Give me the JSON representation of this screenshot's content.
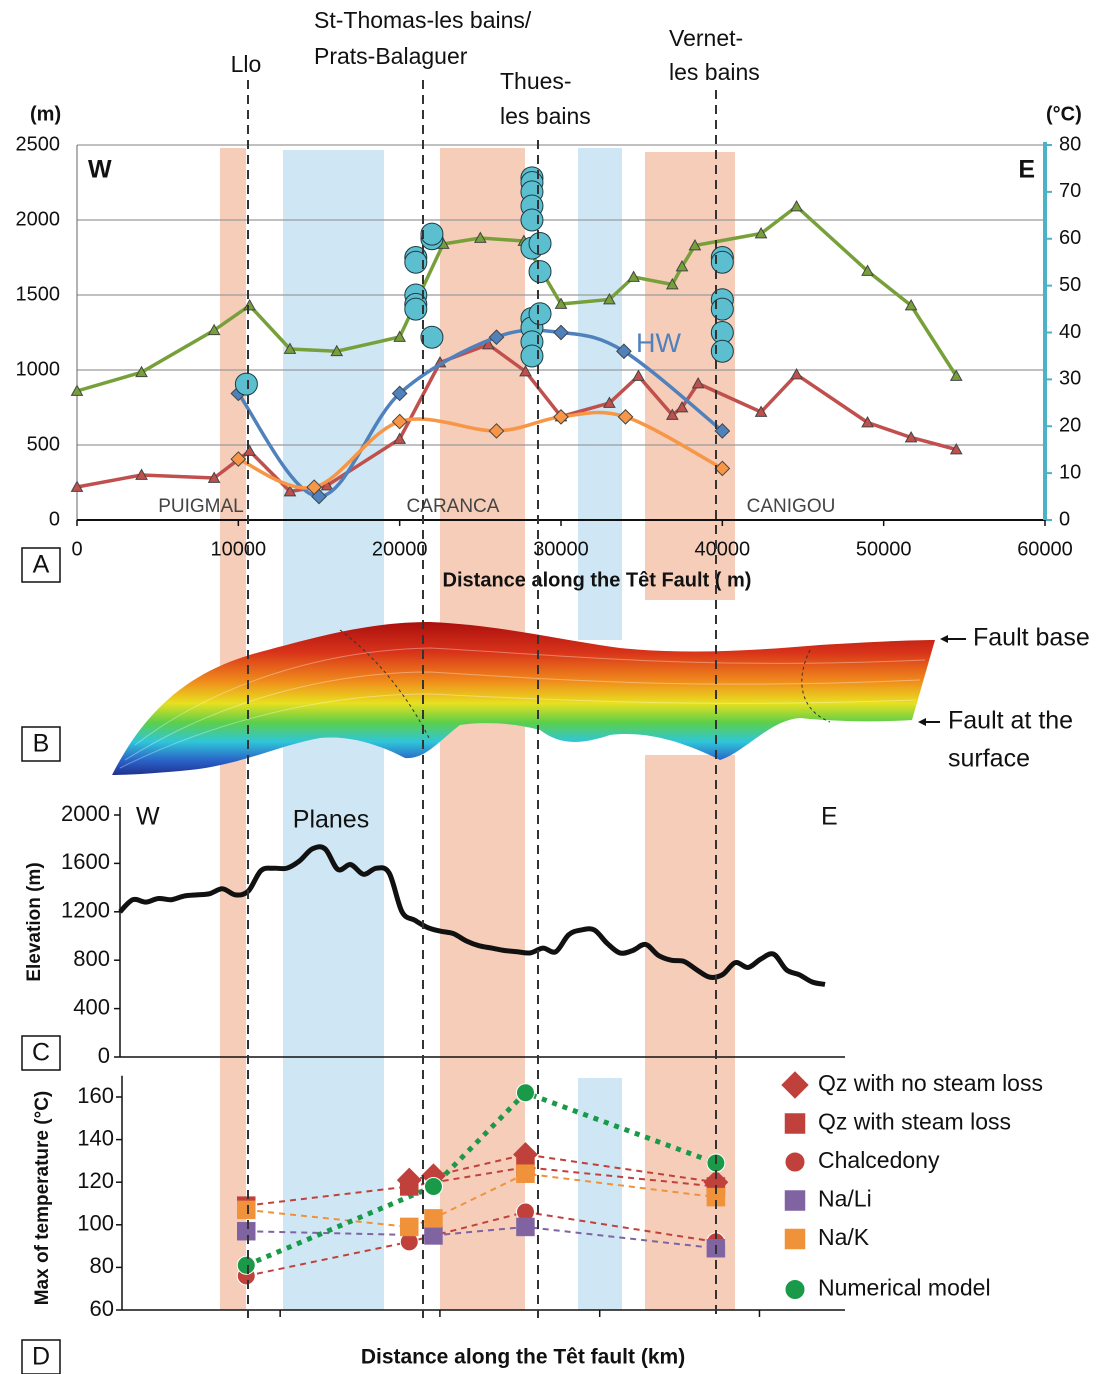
{
  "figure": {
    "locations": [
      [
        "Llo"
      ],
      [
        "St-Thomas-les bains/",
        "Prats-Balaguer"
      ],
      [
        "Thues-",
        "les bains"
      ],
      [
        "Vernet-",
        "les bains"
      ]
    ],
    "panel_b": {
      "label": "B",
      "annotations": [
        [
          "Fault base"
        ],
        [
          "Fault at the",
          "surface"
        ]
      ]
    }
  },
  "chart_data": [
    {
      "type": "line",
      "panel": "A",
      "y_unit": "(m)",
      "y2_unit": "(°C)",
      "xlabel": "Distance along the Têt Fault (  m)",
      "annotations": {
        "west": "W",
        "east": "E",
        "regions": [
          "PUIGMAL",
          "CARANCA",
          "CANIGOU"
        ]
      },
      "xlim": [
        0,
        60000
      ],
      "xticks": [
        0,
        10000,
        20000,
        30000,
        40000,
        50000,
        60000
      ],
      "ylim": [
        0,
        2500
      ],
      "yticks": [
        0,
        500,
        1000,
        1500,
        2000,
        2500
      ],
      "y2lim": [
        0,
        80
      ],
      "y2ticks": [
        0,
        10,
        20,
        30,
        40,
        50,
        60,
        70,
        80
      ],
      "grid": true,
      "series": [
        {
          "color": "#77a03a",
          "marker": "triangle",
          "line": true,
          "smooth": false,
          "x": [
            0,
            4000,
            8500,
            10700,
            13200,
            16100,
            20000,
            22700,
            25000,
            27700,
            30000,
            33000,
            34500,
            36900,
            37500,
            38300,
            42400,
            44600,
            49000,
            51700,
            54500
          ],
          "values": [
            860,
            985,
            1265,
            1430,
            1140,
            1125,
            1220,
            1840,
            1880,
            1860,
            1440,
            1470,
            1620,
            1570,
            1690,
            1830,
            1910,
            2090,
            1660,
            1430,
            960
          ]
        },
        {
          "color": "#c0504d",
          "marker": "triangle",
          "line": true,
          "smooth": false,
          "x": [
            0,
            4000,
            8500,
            10700,
            13200,
            15500,
            20000,
            22500,
            25500,
            27800,
            30000,
            33000,
            34800,
            36900,
            37500,
            38500,
            42400,
            44600,
            49000,
            51700,
            54500
          ],
          "values": [
            220,
            300,
            280,
            460,
            190,
            230,
            540,
            1050,
            1170,
            990,
            690,
            780,
            960,
            700,
            750,
            910,
            720,
            970,
            650,
            550,
            470
          ]
        },
        {
          "name": "HW",
          "axis": "y2",
          "color": "#4f81bd",
          "marker": "diamond",
          "line": true,
          "smooth": true,
          "x": [
            10000,
            15000,
            20000,
            26000,
            30000,
            33900,
            40000
          ],
          "values": [
            27,
            5,
            27,
            39,
            40,
            36,
            19
          ]
        },
        {
          "axis": "y2",
          "color": "#f79646",
          "marker": "diamond",
          "line": true,
          "smooth": true,
          "x": [
            10000,
            14700,
            20000,
            26000,
            30000,
            34000,
            40000
          ],
          "values": [
            13,
            7,
            21,
            19,
            22,
            22,
            11
          ]
        },
        {
          "axis": "y2",
          "color": "#4bb3c8",
          "marker": "circle",
          "line": false,
          "smooth": false,
          "x": [
            10500,
            21000,
            21000,
            21000,
            21000,
            21000,
            22000,
            22000,
            22000,
            28200,
            28200,
            28200,
            28200,
            28200,
            28200,
            28200,
            28200,
            28200,
            28200,
            28700,
            28700,
            28700,
            40000,
            40000,
            40000,
            40000,
            40000,
            40000
          ],
          "values": [
            29,
            56,
            55,
            48,
            46,
            45,
            60,
            61,
            39,
            73,
            72,
            70,
            67,
            64,
            58,
            43,
            41,
            38,
            35,
            59,
            53,
            44,
            56,
            55,
            47,
            45,
            40,
            36
          ]
        }
      ]
    },
    {
      "type": "line",
      "panel": "C",
      "ylabel": "Elevation (m)",
      "annotations": {
        "west": "W",
        "east": "E",
        "planes": "Planes"
      },
      "ylim": [
        0,
        2000
      ],
      "yticks": [
        0,
        400,
        800,
        1200,
        1600,
        2000
      ],
      "series": [
        {
          "color": "#111111",
          "values": [
            1200,
            1300,
            1280,
            1310,
            1300,
            1330,
            1340,
            1350,
            1390,
            1340,
            1370,
            1540,
            1560,
            1560,
            1620,
            1720,
            1720,
            1550,
            1590,
            1510,
            1560,
            1520,
            1200,
            1130,
            1070,
            1040,
            1020,
            960,
            920,
            900,
            880,
            870,
            860,
            900,
            870,
            1010,
            1050,
            1050,
            940,
            860,
            880,
            930,
            840,
            800,
            790,
            720,
            660,
            680,
            780,
            740,
            810,
            850,
            720,
            680,
            620,
            600
          ]
        }
      ]
    },
    {
      "type": "scatter",
      "panel": "D",
      "xlabel": "Distance along the Têt fault (km)",
      "ylabel": "Max of temperature (°C)",
      "xlim": [
        2.8,
        47.6
      ],
      "xticks": [
        12.6,
        22.5,
        32.4,
        42.3
      ],
      "ylim": [
        60,
        170
      ],
      "yticks": [
        60,
        80,
        100,
        120,
        140,
        160
      ],
      "legend": "right",
      "series": [
        {
          "name": "Qz with no steam loss",
          "color": "#c0413b",
          "marker": "diamond",
          "line": "dashed",
          "x": [
            20.6,
            22.1,
            27.8,
            39.6
          ],
          "values": [
            121,
            123,
            133,
            120
          ]
        },
        {
          "name": "Qz with steam loss",
          "color": "#c0413b",
          "marker": "square",
          "line": "dashed",
          "x": [
            10.5,
            20.6,
            27.8,
            39.6
          ],
          "values": [
            109,
            118,
            127,
            118
          ]
        },
        {
          "name": "Chalcedony",
          "color": "#c0413b",
          "marker": "circle",
          "line": "dashed",
          "x": [
            10.5,
            20.6,
            27.8,
            39.6
          ],
          "values": [
            76,
            92,
            106,
            92
          ]
        },
        {
          "name": "Na/Li",
          "color": "#8064a2",
          "marker": "square",
          "line": "dashed",
          "x": [
            10.5,
            22.1,
            27.8,
            39.6
          ],
          "values": [
            97,
            95,
            99,
            89
          ]
        },
        {
          "name": "Na/K",
          "color": "#f0923a",
          "marker": "square",
          "line": "dashed",
          "x": [
            10.5,
            20.6,
            22.1,
            27.8,
            39.6
          ],
          "values": [
            107,
            99,
            103,
            124,
            113
          ]
        },
        {
          "name": "Numerical model",
          "color": "#1a9a48",
          "marker": "circle",
          "line": "dotted",
          "x": [
            10.5,
            22.1,
            27.8,
            39.6
          ],
          "values": [
            81,
            118,
            162,
            129
          ]
        }
      ]
    }
  ]
}
